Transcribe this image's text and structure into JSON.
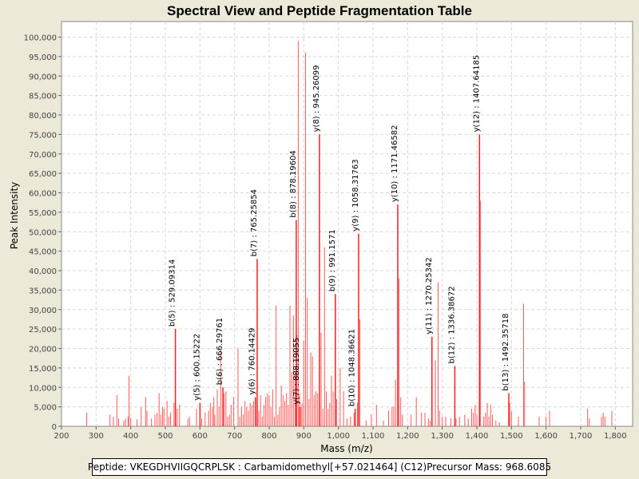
{
  "chart_data": {
    "type": "spectrum",
    "title": "Spectral View and Peptide Fragmentation Table",
    "xlabel": "Mass (m/z)",
    "ylabel": "Peak Intensity",
    "xlim": [
      200,
      1850
    ],
    "ylim": [
      0,
      104000
    ],
    "x_ticks": [
      200,
      300,
      400,
      500,
      600,
      700,
      800,
      900,
      1000,
      1100,
      1200,
      1300,
      1400,
      1500,
      1600,
      1700,
      1800
    ],
    "x_tick_labels": [
      "200",
      "300",
      "400",
      "500",
      "600",
      "700",
      "800",
      "900",
      "1,000",
      "1,100",
      "1,200",
      "1,300",
      "1,400",
      "1,500",
      "1,600",
      "1,700",
      "1,800"
    ],
    "y_ticks": [
      0,
      5000,
      10000,
      15000,
      20000,
      25000,
      30000,
      35000,
      40000,
      45000,
      50000,
      55000,
      60000,
      65000,
      70000,
      75000,
      80000,
      85000,
      90000,
      95000,
      100000
    ],
    "y_tick_labels": [
      "0",
      "5,000",
      "10,000",
      "15,000",
      "20,000",
      "25,000",
      "30,000",
      "35,000",
      "40,000",
      "45,000",
      "50,000",
      "55,000",
      "60,000",
      "65,000",
      "70,000",
      "75,000",
      "80,000",
      "85,000",
      "90,000",
      "95,000",
      "100,000"
    ],
    "annotated_peaks": [
      {
        "mz": 529.09314,
        "intensity": 25000,
        "label": "b(5) : 529.09314"
      },
      {
        "mz": 600.15222,
        "intensity": 6000,
        "label": "y(5) : 600.15222"
      },
      {
        "mz": 666.29761,
        "intensity": 10000,
        "label": "b(6) : 666.29761"
      },
      {
        "mz": 760.14429,
        "intensity": 7500,
        "label": "y(6) : 760.14429"
      },
      {
        "mz": 765.25854,
        "intensity": 43000,
        "label": "b(7) : 765.25854"
      },
      {
        "mz": 878.19604,
        "intensity": 53000,
        "label": "b(8) : 878.19604"
      },
      {
        "mz": 888.19055,
        "intensity": 5000,
        "label": "y(7) : 888.19055"
      },
      {
        "mz": 945.26099,
        "intensity": 75000,
        "label": "y(8) : 945.26099"
      },
      {
        "mz": 991.1571,
        "intensity": 34000,
        "label": "b(9) : 991.1571"
      },
      {
        "mz": 1048.36621,
        "intensity": 4500,
        "label": "b(10) : 1048.36621"
      },
      {
        "mz": 1058.31763,
        "intensity": 49500,
        "label": "y(9) : 1058.31763"
      },
      {
        "mz": 1171.46582,
        "intensity": 57000,
        "label": "y(10) : 1171.46582"
      },
      {
        "mz": 1270.25342,
        "intensity": 23000,
        "label": "y(11) : 1270.25342"
      },
      {
        "mz": 1336.38672,
        "intensity": 15500,
        "label": "b(12) : 1336.38672"
      },
      {
        "mz": 1407.64185,
        "intensity": 75000,
        "label": "y(12) : 1407.64185"
      },
      {
        "mz": 1492.35718,
        "intensity": 8500,
        "label": "b(13) : 1492.35718"
      }
    ],
    "peaks": [
      [
        273,
        3500
      ],
      [
        340,
        3000
      ],
      [
        350,
        2500
      ],
      [
        360,
        8000
      ],
      [
        365,
        2000
      ],
      [
        380,
        1500
      ],
      [
        385,
        2000
      ],
      [
        392,
        2500
      ],
      [
        395,
        13000
      ],
      [
        400,
        2200
      ],
      [
        418,
        1800
      ],
      [
        430,
        5000
      ],
      [
        443,
        7500
      ],
      [
        447,
        4000
      ],
      [
        460,
        2000
      ],
      [
        470,
        3000
      ],
      [
        476,
        3500
      ],
      [
        482,
        8500
      ],
      [
        487,
        3000
      ],
      [
        492,
        5000
      ],
      [
        496,
        4500
      ],
      [
        505,
        6500
      ],
      [
        510,
        2500
      ],
      [
        515,
        3500
      ],
      [
        525,
        6000
      ],
      [
        534,
        4500
      ],
      [
        541,
        5500
      ],
      [
        565,
        2000
      ],
      [
        570,
        2500
      ],
      [
        590,
        4500
      ],
      [
        605,
        2000
      ],
      [
        615,
        3500
      ],
      [
        625,
        4000
      ],
      [
        630,
        6000
      ],
      [
        636,
        5000
      ],
      [
        640,
        7500
      ],
      [
        643,
        3000
      ],
      [
        650,
        9500
      ],
      [
        655,
        5000
      ],
      [
        660,
        19500
      ],
      [
        670,
        8500
      ],
      [
        675,
        9000
      ],
      [
        680,
        2500
      ],
      [
        685,
        3000
      ],
      [
        690,
        5500
      ],
      [
        697,
        7500
      ],
      [
        710,
        20000
      ],
      [
        715,
        2500
      ],
      [
        720,
        5000
      ],
      [
        725,
        3000
      ],
      [
        730,
        6500
      ],
      [
        735,
        5000
      ],
      [
        740,
        4000
      ],
      [
        745,
        6000
      ],
      [
        750,
        5500
      ],
      [
        755,
        6500
      ],
      [
        770,
        4000
      ],
      [
        775,
        8000
      ],
      [
        780,
        2500
      ],
      [
        785,
        5500
      ],
      [
        790,
        7500
      ],
      [
        795,
        8500
      ],
      [
        800,
        8000
      ],
      [
        805,
        5000
      ],
      [
        810,
        9500
      ],
      [
        815,
        2500
      ],
      [
        820,
        31000
      ],
      [
        825,
        3000
      ],
      [
        830,
        5000
      ],
      [
        835,
        10500
      ],
      [
        840,
        8000
      ],
      [
        845,
        6500
      ],
      [
        850,
        8500
      ],
      [
        855,
        5500
      ],
      [
        860,
        31000
      ],
      [
        865,
        14000
      ],
      [
        870,
        28500
      ],
      [
        875,
        13500
      ],
      [
        880,
        23500
      ],
      [
        884,
        99000
      ],
      [
        888,
        8500
      ],
      [
        892,
        5000
      ],
      [
        895,
        6000
      ],
      [
        900,
        22000
      ],
      [
        905,
        96000
      ],
      [
        910,
        33000
      ],
      [
        915,
        7000
      ],
      [
        920,
        19000
      ],
      [
        925,
        18000
      ],
      [
        930,
        8000
      ],
      [
        935,
        9000
      ],
      [
        940,
        8500
      ],
      [
        950,
        24000
      ],
      [
        955,
        4500
      ],
      [
        960,
        46000
      ],
      [
        965,
        9000
      ],
      [
        970,
        4500
      ],
      [
        975,
        6000
      ],
      [
        980,
        13000
      ],
      [
        985,
        9000
      ],
      [
        995,
        7000
      ],
      [
        1005,
        15000
      ],
      [
        1015,
        9000
      ],
      [
        1025,
        2000
      ],
      [
        1035,
        2500
      ],
      [
        1045,
        3500
      ],
      [
        1055,
        6000
      ],
      [
        1062,
        27500
      ],
      [
        1080,
        1500
      ],
      [
        1095,
        3000
      ],
      [
        1110,
        5500
      ],
      [
        1130,
        1500
      ],
      [
        1145,
        4000
      ],
      [
        1155,
        5000
      ],
      [
        1160,
        5000
      ],
      [
        1165,
        12000
      ],
      [
        1175,
        38000
      ],
      [
        1180,
        7500
      ],
      [
        1185,
        3000
      ],
      [
        1210,
        3000
      ],
      [
        1225,
        7500
      ],
      [
        1240,
        3500
      ],
      [
        1250,
        3500
      ],
      [
        1260,
        2000
      ],
      [
        1265,
        1500
      ],
      [
        1280,
        17000
      ],
      [
        1288,
        37000
      ],
      [
        1292,
        4000
      ],
      [
        1300,
        2500
      ],
      [
        1310,
        2500
      ],
      [
        1325,
        2000
      ],
      [
        1340,
        2000
      ],
      [
        1350,
        2500
      ],
      [
        1365,
        3000
      ],
      [
        1375,
        2000
      ],
      [
        1385,
        4500
      ],
      [
        1390,
        3500
      ],
      [
        1395,
        5500
      ],
      [
        1400,
        3000
      ],
      [
        1410,
        58000
      ],
      [
        1420,
        2500
      ],
      [
        1425,
        3500
      ],
      [
        1430,
        6000
      ],
      [
        1435,
        2500
      ],
      [
        1440,
        5500
      ],
      [
        1445,
        3000
      ],
      [
        1455,
        1500
      ],
      [
        1465,
        1000
      ],
      [
        1495,
        6000
      ],
      [
        1500,
        4000
      ],
      [
        1520,
        2500
      ],
      [
        1535,
        31500
      ],
      [
        1538,
        11500
      ],
      [
        1580,
        2500
      ],
      [
        1600,
        2500
      ],
      [
        1610,
        4000
      ],
      [
        1720,
        4500
      ],
      [
        1725,
        2000
      ],
      [
        1760,
        2500
      ],
      [
        1765,
        3500
      ],
      [
        1770,
        2500
      ],
      [
        1790,
        4000
      ]
    ]
  },
  "footer": {
    "peptide": "Peptide: VKEGDHVIIGQCRPLSK : Carbamidomethyl[+57.021464] (C12)",
    "precursor": "Precursor Mass: 968.6085"
  }
}
